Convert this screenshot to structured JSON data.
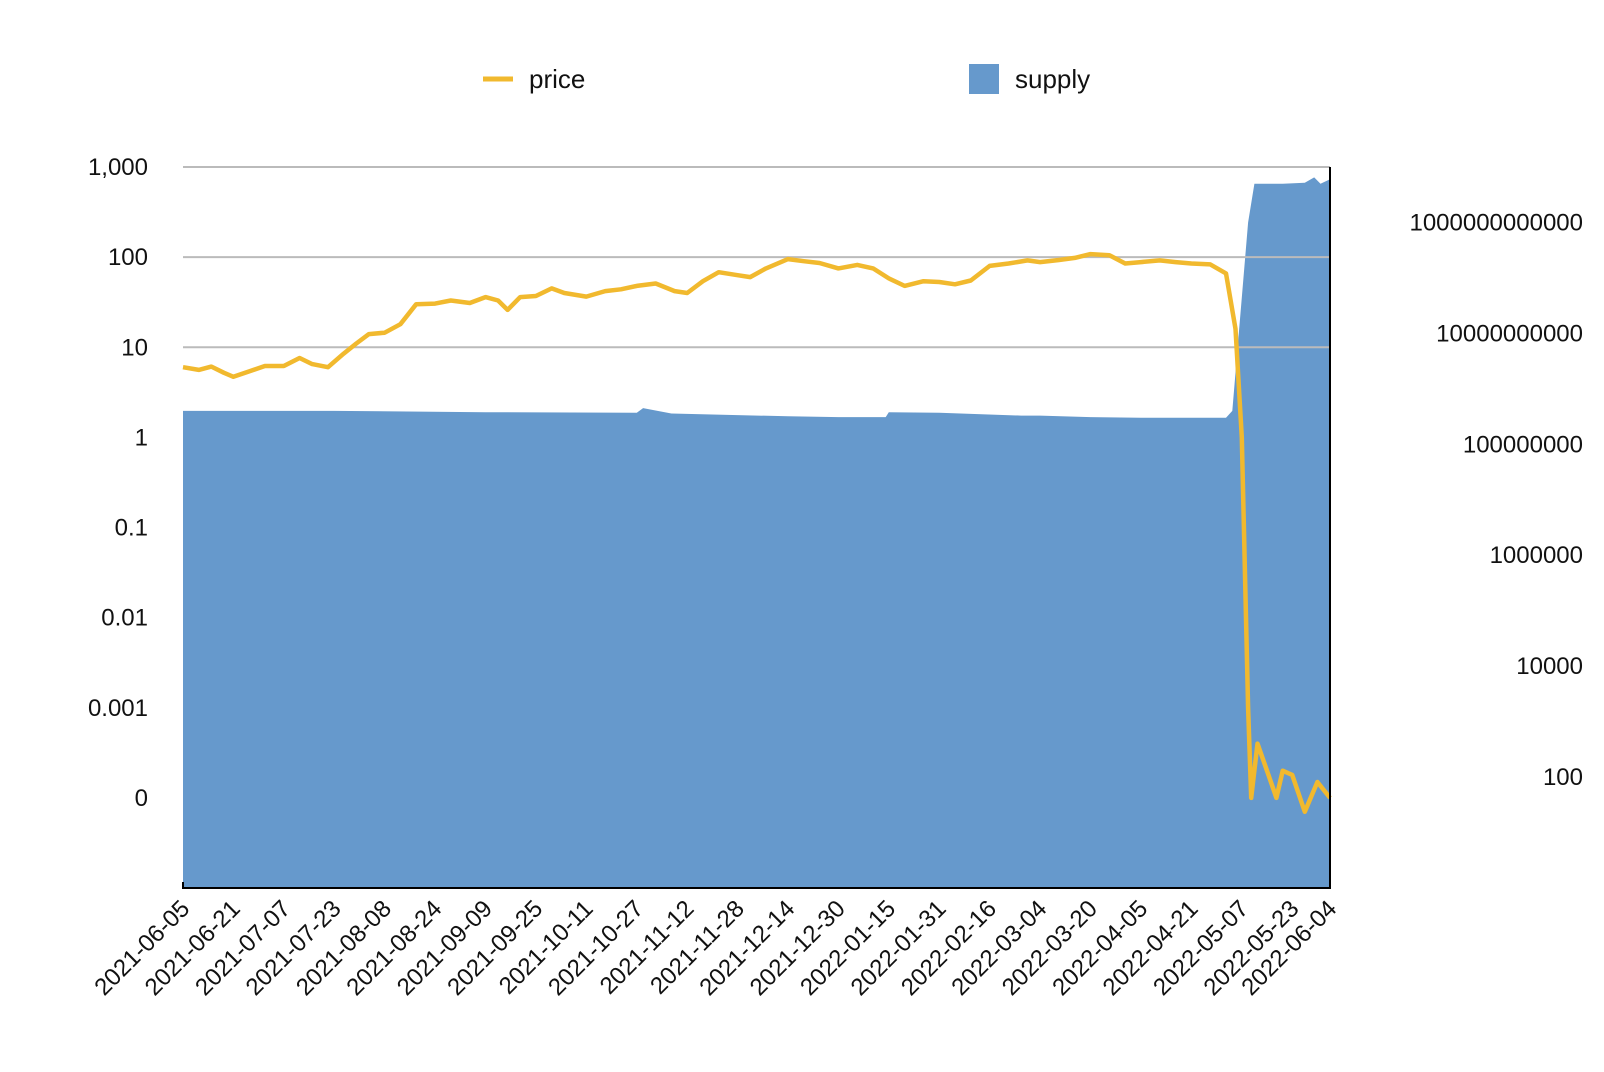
{
  "chart_data": {
    "type": "line",
    "legend": {
      "placement": "top-center",
      "items": [
        {
          "name": "price",
          "kind": "line",
          "color": "#F1B92E"
        },
        {
          "name": "supply",
          "kind": "area",
          "color": "#6699CC"
        }
      ]
    },
    "colors": {
      "price": "#F1B92E",
      "supply": "#6699CC",
      "grid": "#BBBBBB",
      "axis": "#000000"
    },
    "left_axis": {
      "scale": "log",
      "ticks": [
        {
          "label": "1,000",
          "value": 1000
        },
        {
          "label": "100",
          "value": 100
        },
        {
          "label": "10",
          "value": 10
        },
        {
          "label": "1",
          "value": 1
        },
        {
          "label": "0.1",
          "value": 0.1
        },
        {
          "label": "0.01",
          "value": 0.01
        },
        {
          "label": "0.001",
          "value": 0.001
        },
        {
          "label": "0",
          "value": 0.0001
        }
      ],
      "range": [
        1e-05,
        1000
      ],
      "grid": [
        1000,
        100,
        10
      ]
    },
    "right_axis": {
      "scale": "log",
      "ticks": [
        {
          "label": "1000000000000",
          "value": 1000000000000
        },
        {
          "label": "10000000000",
          "value": 10000000000
        },
        {
          "label": "100000000",
          "value": 100000000
        },
        {
          "label": "1000000",
          "value": 1000000
        },
        {
          "label": "10000",
          "value": 10000
        },
        {
          "label": "100",
          "value": 100
        }
      ],
      "range": [
        1,
        10000000000000
      ]
    },
    "x_axis": {
      "type": "date",
      "range": [
        "2021-06-05",
        "2022-06-04"
      ],
      "ticks": [
        "2021-06-05",
        "2021-06-21",
        "2021-07-07",
        "2021-07-23",
        "2021-08-08",
        "2021-08-24",
        "2021-09-09",
        "2021-09-25",
        "2021-10-11",
        "2021-10-27",
        "2021-11-12",
        "2021-11-28",
        "2021-12-14",
        "2021-12-30",
        "2022-01-15",
        "2022-01-31",
        "2022-02-16",
        "2022-03-04",
        "2022-03-20",
        "2022-04-05",
        "2022-04-21",
        "2022-05-07",
        "2022-05-23",
        "2022-06-04"
      ]
    },
    "series": [
      {
        "name": "price",
        "axis": "left",
        "type": "line",
        "points": [
          [
            "2021-06-05",
            6.0
          ],
          [
            "2021-06-10",
            5.6
          ],
          [
            "2021-06-14",
            6.1
          ],
          [
            "2021-06-18",
            5.2
          ],
          [
            "2021-06-21",
            4.7
          ],
          [
            "2021-06-26",
            5.4
          ],
          [
            "2021-07-01",
            6.2
          ],
          [
            "2021-07-07",
            6.2
          ],
          [
            "2021-07-12",
            7.6
          ],
          [
            "2021-07-16",
            6.5
          ],
          [
            "2021-07-21",
            6.0
          ],
          [
            "2021-07-26",
            8.5
          ],
          [
            "2021-07-30",
            11.0
          ],
          [
            "2021-08-03",
            14.0
          ],
          [
            "2021-08-08",
            14.5
          ],
          [
            "2021-08-13",
            18.0
          ],
          [
            "2021-08-18",
            30.0
          ],
          [
            "2021-08-24",
            30.5
          ],
          [
            "2021-08-29",
            33.0
          ],
          [
            "2021-09-04",
            31.0
          ],
          [
            "2021-09-09",
            36.0
          ],
          [
            "2021-09-13",
            33.0
          ],
          [
            "2021-09-16",
            26.0
          ],
          [
            "2021-09-20",
            36.0
          ],
          [
            "2021-09-25",
            37.0
          ],
          [
            "2021-09-30",
            45.0
          ],
          [
            "2021-10-04",
            40.0
          ],
          [
            "2021-10-11",
            36.5
          ],
          [
            "2021-10-17",
            42.0
          ],
          [
            "2021-10-22",
            44.0
          ],
          [
            "2021-10-27",
            48.0
          ],
          [
            "2021-11-02",
            51.0
          ],
          [
            "2021-11-08",
            42.0
          ],
          [
            "2021-11-12",
            40.0
          ],
          [
            "2021-11-17",
            54.0
          ],
          [
            "2021-11-22",
            68.0
          ],
          [
            "2021-11-28",
            63.0
          ],
          [
            "2021-12-02",
            60.0
          ],
          [
            "2021-12-07",
            75.0
          ],
          [
            "2021-12-14",
            95.0
          ],
          [
            "2021-12-19",
            90.0
          ],
          [
            "2021-12-24",
            86.0
          ],
          [
            "2021-12-30",
            75.0
          ],
          [
            "2022-01-05",
            82.0
          ],
          [
            "2022-01-10",
            75.0
          ],
          [
            "2022-01-15",
            58.0
          ],
          [
            "2022-01-20",
            48.0
          ],
          [
            "2022-01-26",
            54.0
          ],
          [
            "2022-01-31",
            53.0
          ],
          [
            "2022-02-05",
            50.0
          ],
          [
            "2022-02-10",
            55.0
          ],
          [
            "2022-02-16",
            80.0
          ],
          [
            "2022-02-22",
            85.0
          ],
          [
            "2022-02-28",
            92.0
          ],
          [
            "2022-03-04",
            88.0
          ],
          [
            "2022-03-10",
            93.0
          ],
          [
            "2022-03-15",
            98.0
          ],
          [
            "2022-03-20",
            108.0
          ],
          [
            "2022-03-26",
            105.0
          ],
          [
            "2022-03-31",
            85.0
          ],
          [
            "2022-04-05",
            88.0
          ],
          [
            "2022-04-11",
            92.0
          ],
          [
            "2022-04-16",
            88.0
          ],
          [
            "2022-04-21",
            85.0
          ],
          [
            "2022-04-27",
            83.0
          ],
          [
            "2022-05-02",
            66.0
          ],
          [
            "2022-05-05",
            16.0
          ],
          [
            "2022-05-07",
            1.0
          ],
          [
            "2022-05-09",
            0.001
          ],
          [
            "2022-05-10",
            0.0001
          ],
          [
            "2022-05-12",
            0.0004
          ],
          [
            "2022-05-15",
            0.0002
          ],
          [
            "2022-05-18",
            0.0001
          ],
          [
            "2022-05-20",
            0.0002
          ],
          [
            "2022-05-23",
            0.00018
          ],
          [
            "2022-05-27",
            7e-05
          ],
          [
            "2022-05-31",
            0.00015
          ],
          [
            "2022-06-04",
            0.0001
          ]
        ]
      },
      {
        "name": "supply",
        "axis": "right",
        "type": "area",
        "points": [
          [
            "2021-06-05",
            400000000
          ],
          [
            "2021-07-23",
            400000000
          ],
          [
            "2021-09-09",
            380000000
          ],
          [
            "2021-10-27",
            370000000
          ],
          [
            "2021-10-29",
            450000000
          ],
          [
            "2021-11-07",
            360000000
          ],
          [
            "2021-12-14",
            320000000
          ],
          [
            "2021-12-30",
            310000000
          ],
          [
            "2022-01-14",
            310000000
          ],
          [
            "2022-01-15",
            380000000
          ],
          [
            "2022-01-31",
            370000000
          ],
          [
            "2022-02-26",
            330000000
          ],
          [
            "2022-03-04",
            330000000
          ],
          [
            "2022-03-20",
            310000000
          ],
          [
            "2022-04-05",
            300000000
          ],
          [
            "2022-05-02",
            300000000
          ],
          [
            "2022-05-04",
            400000000
          ],
          [
            "2022-05-09",
            1000000000000
          ],
          [
            "2022-05-11",
            5000000000000
          ],
          [
            "2022-05-20",
            5000000000000
          ],
          [
            "2022-05-27",
            5200000000000
          ],
          [
            "2022-05-30",
            6500000000000
          ],
          [
            "2022-06-01",
            5000000000000
          ],
          [
            "2022-06-04",
            6000000000000
          ]
        ]
      }
    ]
  }
}
